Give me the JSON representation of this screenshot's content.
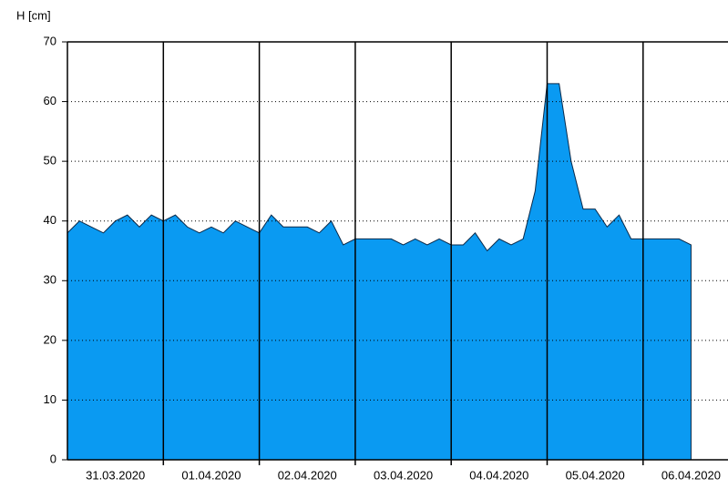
{
  "chart_data": {
    "type": "area",
    "y_label": "H [cm]",
    "categories": [
      "31.03.2020",
      "01.04.2020",
      "02.04.2020",
      "03.04.2020",
      "04.04.2020",
      "05.04.2020",
      "06.04.2020"
    ],
    "values": [
      [
        38,
        40,
        39,
        38,
        40,
        41,
        39,
        41
      ],
      [
        40,
        41,
        39,
        38,
        39,
        38,
        40,
        39
      ],
      [
        38,
        41,
        39,
        39,
        39,
        38,
        40,
        36
      ],
      [
        37,
        37,
        37,
        37,
        36,
        37,
        36,
        37
      ],
      [
        36,
        36,
        38,
        35,
        37,
        36,
        37,
        45
      ],
      [
        63,
        63,
        50,
        42,
        42,
        39,
        41,
        37
      ],
      [
        37,
        37,
        37,
        37,
        36
      ]
    ],
    "color": "#0a9af2",
    "ylim": [
      0,
      70
    ],
    "yticks": [
      0,
      10,
      20,
      30,
      40,
      50,
      60,
      70
    ],
    "grid": true
  }
}
